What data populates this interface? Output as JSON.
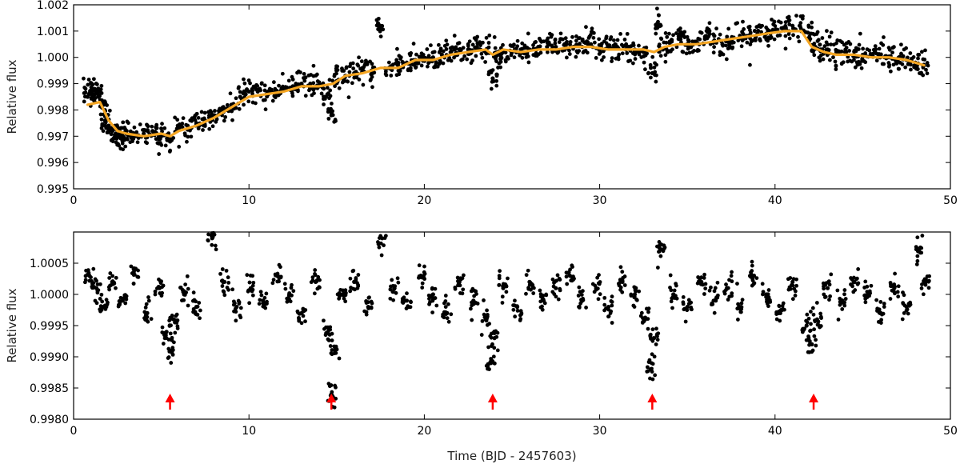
{
  "chart_data": [
    {
      "type": "scatter",
      "panel": "top",
      "ylabel": "Relative flux",
      "xlabel": "",
      "xlim": [
        0,
        50
      ],
      "ylim": [
        0.995,
        1.002
      ],
      "xticks": [
        "0",
        "10",
        "20",
        "30",
        "40",
        "50"
      ],
      "yticks": [
        "0.995",
        "0.996",
        "0.997",
        "0.998",
        "0.999",
        "1.000",
        "1.001",
        "1.002"
      ],
      "grid": false,
      "colors": {
        "points": "#000000",
        "trend": "#f5a623"
      },
      "series": [
        {
          "kind": "points",
          "x": [
            0.8,
            1.0,
            1.2,
            1.4,
            1.6,
            1.8,
            2.0,
            2.2,
            2.4,
            2.6,
            2.8,
            3.0,
            3.5,
            4.0,
            4.5,
            5.0,
            5.5,
            6.0,
            6.5,
            7.0,
            7.5,
            8.0,
            8.5,
            9.0,
            9.5,
            10.0,
            10.5,
            11.0,
            11.5,
            12.0,
            12.5,
            13.0,
            13.5,
            14.0,
            14.5,
            14.7,
            15.0,
            15.5,
            16.0,
            16.5,
            17.0,
            17.5,
            18.0,
            18.5,
            19.0,
            19.5,
            20.0,
            20.5,
            21.0,
            21.5,
            22.0,
            22.5,
            23.0,
            23.5,
            23.9,
            24.2,
            24.5,
            25.0,
            25.5,
            26.0,
            26.5,
            27.0,
            27.5,
            28.0,
            28.5,
            29.0,
            29.5,
            30.0,
            30.5,
            31.0,
            31.5,
            32.0,
            32.5,
            33.0,
            33.3,
            33.6,
            34.0,
            34.5,
            35.0,
            35.5,
            36.0,
            36.5,
            37.0,
            37.5,
            38.0,
            38.5,
            39.0,
            39.5,
            40.0,
            40.5,
            41.0,
            41.5,
            42.0,
            42.3,
            42.6,
            43.0,
            43.5,
            44.0,
            44.5,
            45.0,
            45.5,
            46.0,
            46.5,
            47.0,
            47.5,
            48.0,
            48.5
          ],
          "y": [
            0.9985,
            0.9987,
            0.9988,
            0.9986,
            0.9982,
            0.9976,
            0.9974,
            0.9972,
            0.9971,
            0.997,
            0.997,
            0.9971,
            0.997,
            0.9971,
            0.9972,
            0.997,
            0.9968,
            0.9973,
            0.9974,
            0.9975,
            0.9976,
            0.9978,
            0.998,
            0.9982,
            0.9985,
            0.9987,
            0.9987,
            0.9986,
            0.9987,
            0.9988,
            0.9989,
            0.999,
            0.999,
            0.9989,
            0.9986,
            0.9978,
            0.9991,
            0.9993,
            0.9994,
            0.9995,
            0.9995,
            1.0012,
            0.9996,
            0.9997,
            0.9998,
            0.9999,
            0.9999,
            1.0,
            1.0001,
            1.0002,
            1.0003,
            1.0003,
            1.0004,
            1.0002,
            0.9992,
            1.0001,
            1.0002,
            1.0002,
            1.0003,
            1.0003,
            1.0004,
            1.0004,
            1.0004,
            1.0005,
            1.0004,
            1.0004,
            1.0005,
            1.0003,
            1.0004,
            1.0004,
            1.0003,
            1.0003,
            1.0002,
            0.9994,
            1.0013,
            1.0003,
            1.0006,
            1.0007,
            1.0005,
            1.0006,
            1.0007,
            1.0006,
            1.0005,
            1.0007,
            1.0008,
            1.0008,
            1.0009,
            1.0009,
            1.001,
            1.0011,
            1.0012,
            1.001,
            1.0009,
            1.0004,
            1.0003,
            1.0003,
            1.0002,
            1.0002,
            1.0001,
            1.0001,
            1.0001,
            1.0,
            1.0,
            0.9999,
            0.9999,
            0.9998,
            0.9997
          ]
        },
        {
          "kind": "trend",
          "x": [
            0.8,
            1.5,
            2.0,
            2.5,
            3.0,
            4.0,
            5.0,
            5.5,
            6.0,
            7.0,
            8.0,
            9.0,
            10.0,
            11.0,
            12.0,
            13.0,
            14.0,
            14.8,
            15.5,
            16.5,
            17.5,
            18.5,
            19.5,
            20.5,
            21.5,
            22.5,
            23.5,
            23.9,
            24.5,
            25.5,
            26.5,
            27.5,
            28.5,
            29.5,
            30.5,
            31.5,
            32.5,
            33.1,
            33.7,
            34.5,
            35.5,
            36.5,
            37.5,
            38.5,
            39.5,
            40.5,
            41.5,
            42.1,
            42.8,
            43.5,
            44.5,
            45.5,
            46.5,
            47.5,
            48.5
          ],
          "y": [
            0.9982,
            0.9983,
            0.9976,
            0.9972,
            0.9971,
            0.997,
            0.9971,
            0.997,
            0.9972,
            0.9974,
            0.9977,
            0.9981,
            0.9985,
            0.9986,
            0.9987,
            0.9989,
            0.9989,
            0.999,
            0.9993,
            0.9994,
            0.9996,
            0.9996,
            0.9999,
            0.9999,
            1.0001,
            1.0002,
            1.0003,
            1.0001,
            1.0003,
            1.0002,
            1.0003,
            1.0003,
            1.0004,
            1.0004,
            1.0003,
            1.0003,
            1.0003,
            1.0002,
            1.0004,
            1.0005,
            1.0005,
            1.0006,
            1.0007,
            1.0008,
            1.0009,
            1.001,
            1.001,
            1.0004,
            1.0002,
            1.0001,
            1.0001,
            1.0,
            1.0,
            0.9999,
            0.9997
          ]
        }
      ]
    },
    {
      "type": "scatter",
      "panel": "bottom",
      "ylabel": "Relative flux",
      "xlabel": "Time (BJD - 2457603)",
      "xlim": [
        0,
        50
      ],
      "ylim": [
        0.998,
        1.001
      ],
      "xticks": [
        "0",
        "10",
        "20",
        "30",
        "40",
        "50"
      ],
      "yticks": [
        "0.9980",
        "0.9985",
        "0.9990",
        "0.9995",
        "1.0000",
        "1.0005"
      ],
      "grid": false,
      "colors": {
        "points": "#000000",
        "arrows": "#ff0000"
      },
      "series": [
        {
          "kind": "points",
          "x": [
            0.9,
            1.3,
            1.7,
            2.2,
            2.8,
            3.5,
            4.2,
            4.9,
            5.3,
            5.5,
            5.7,
            6.3,
            7.0,
            7.9,
            8.6,
            9.3,
            10.1,
            10.8,
            11.6,
            12.3,
            13.0,
            13.8,
            14.5,
            14.7,
            14.9,
            15.3,
            16.0,
            16.8,
            17.6,
            18.3,
            19.0,
            19.8,
            20.5,
            21.3,
            22.0,
            22.8,
            23.5,
            23.8,
            24.0,
            24.5,
            25.3,
            26.0,
            26.8,
            27.5,
            28.3,
            29.0,
            29.8,
            30.5,
            31.3,
            32.0,
            32.6,
            32.9,
            33.1,
            33.5,
            34.2,
            35.0,
            35.8,
            36.5,
            37.3,
            38.0,
            38.8,
            39.5,
            40.3,
            41.0,
            41.8,
            42.1,
            42.4,
            43.0,
            43.8,
            44.5,
            45.3,
            46.0,
            46.8,
            47.5,
            48.2,
            48.6
          ],
          "y": [
            1.0003,
            1.0001,
            0.9998,
            1.0002,
            0.9999,
            1.0004,
            0.9997,
            1.0001,
            0.9994,
            0.9991,
            0.9996,
            1.0,
            0.9998,
            1.0009,
            1.0002,
            0.9998,
            1.0001,
            0.9999,
            1.0003,
            1.0,
            0.9997,
            1.0002,
            0.9994,
            0.9984,
            0.9991,
            1.0,
            1.0002,
            0.9998,
            1.0009,
            1.0001,
            0.9999,
            1.0003,
            1.0,
            0.9997,
            1.0002,
            0.9999,
            0.9996,
            0.9989,
            0.9993,
            1.0001,
            0.9998,
            1.0002,
            0.9999,
            1.0001,
            1.0003,
            0.9999,
            1.0001,
            0.9998,
            1.0002,
            1.0,
            0.9996,
            0.9988,
            0.9993,
            1.0008,
            1.0,
            0.9998,
            1.0002,
            0.9999,
            1.0001,
            0.9998,
            1.0003,
            1.0,
            0.9997,
            1.0002,
            0.9995,
            0.9992,
            0.9996,
            1.0001,
            0.9999,
            1.0002,
            1.0,
            0.9997,
            1.0001,
            0.9998,
            1.0007,
            1.0002
          ]
        },
        {
          "kind": "transit_markers",
          "x": [
            5.5,
            14.7,
            23.9,
            33.0,
            42.2
          ]
        }
      ]
    }
  ]
}
